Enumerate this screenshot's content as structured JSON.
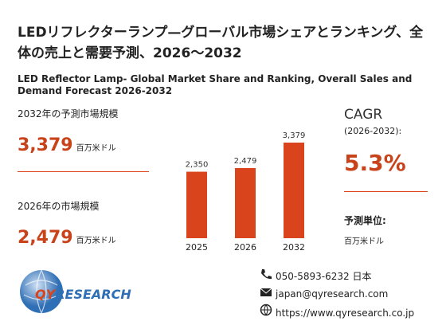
{
  "title": "LEDリフレクターランプ—グローバル市場シェアとランキング、全体の売上と需要予測、2026～2032",
  "subtitle": "LED Reflector Lamp- Global Market Share and Ranking, Overall Sales and Demand Forecast 2026-2032",
  "forecast": {
    "label": "2032年の予測市場規模",
    "value": "3,379",
    "unit": "百万米ドル"
  },
  "current": {
    "label": "2026年の市場規模",
    "value": "2,479",
    "unit": "百万米ドル"
  },
  "chart_data": {
    "type": "bar",
    "categories": [
      "2025",
      "2026",
      "2032"
    ],
    "values": [
      2350,
      2479,
      3379
    ],
    "value_labels": [
      "2,350",
      "2,479",
      "3,379"
    ],
    "color": "#d9441c"
  },
  "cagr": {
    "label": "CAGR",
    "period": "(2026-2032):",
    "value": "5.3%"
  },
  "unit": {
    "label": "予測単位:",
    "value": "百万米ドル"
  },
  "logo": {
    "part1": "QY",
    "part2": "RESEARCH"
  },
  "contact": {
    "phone": "050-5893-6232 日本",
    "email": "japan@qyresearch.com",
    "web": "https://www.qyresearch.co.jp"
  }
}
